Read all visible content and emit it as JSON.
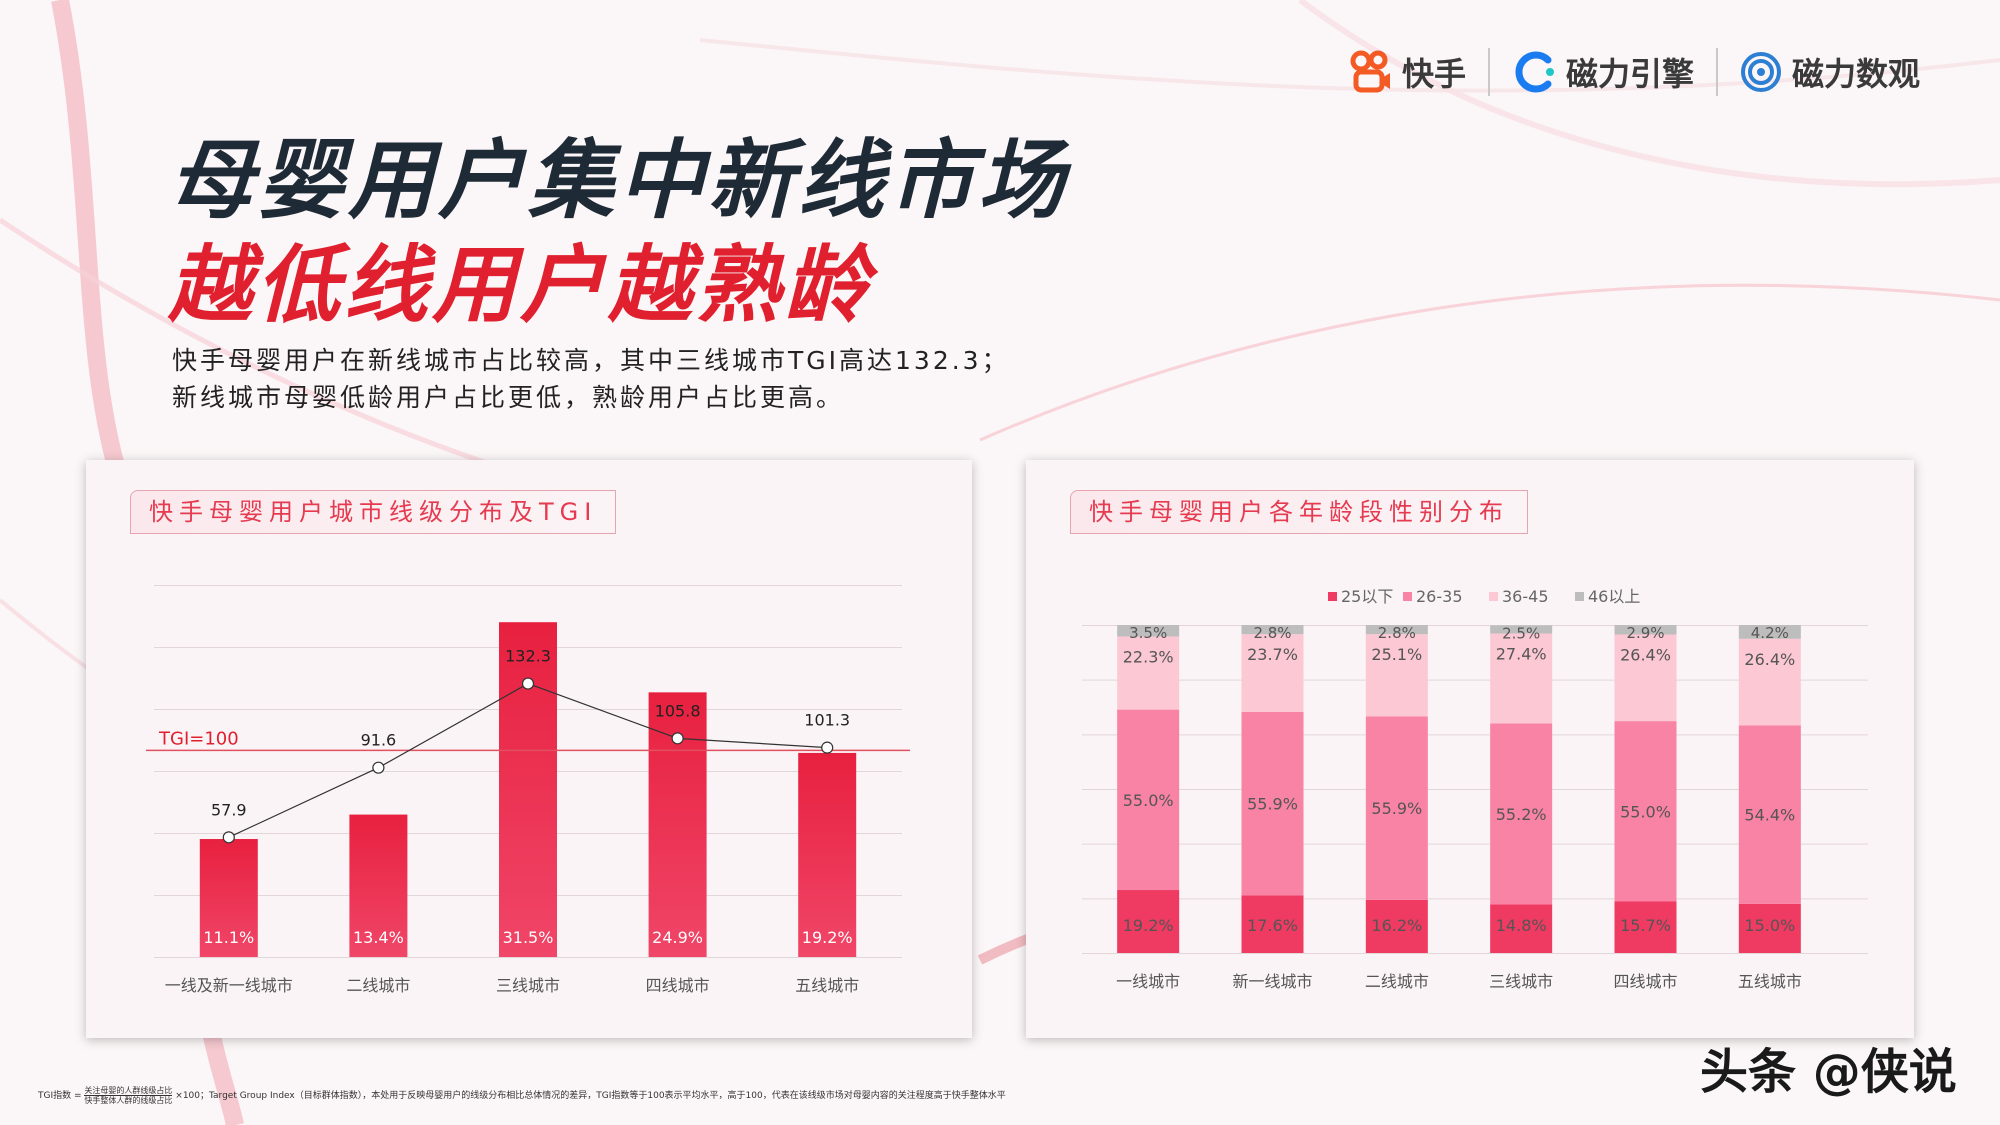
{
  "logos": [
    {
      "name": "kuaishou",
      "label": "快手",
      "color": "#f35a24"
    },
    {
      "name": "cili-yinqing",
      "label": "磁力引擎",
      "color": "#1b7cf2"
    },
    {
      "name": "cili-shuguan",
      "label": "磁力数观",
      "color": "#2d7fd4"
    }
  ],
  "title_line1": "母婴用户集中新线市场",
  "title_line2": "越低线用户越熟龄",
  "description_line1": "快手母婴用户在新线城市占比较高，其中三线城市TGI高达132.3；",
  "description_line2": "新线城市母婴低龄用户占比更低，熟龄用户占比更高。",
  "panel1_title": "快手母婴用户城市线级分布及TGI",
  "panel2_title": "快手母婴用户各年龄段性别分布",
  "footnote": {
    "prefix": "TGI指数 =",
    "numerator": "关注母婴的人群线级占比",
    "denominator": "快手整体人群的线级占比",
    "suffix": "×100；Target Group Index（目标群体指数），本处用于反映母婴用户的线级分布相比总体情况的差异，TGI指数等于100表示平均水平，高于100，代表在该线级市场对母婴内容的关注程度高于快手整体水平"
  },
  "watermark": "头条 @侠说",
  "colors": {
    "title_red": "#e0202e",
    "bar_red": "#e8203f",
    "accent": "#e63a50"
  },
  "chart_data": [
    {
      "type": "bar",
      "categories": [
        "一线及新一线城市",
        "二线城市",
        "三线城市",
        "四线城市",
        "五线城市"
      ],
      "series": [
        {
          "values": [
            11.1,
            13.4,
            31.5,
            24.9,
            19.2
          ],
          "value_labels": [
            "11.1%",
            "13.4%",
            "31.5%",
            "24.9%",
            "19.2%"
          ]
        },
        {
          "type": "line",
          "values": [
            57.9,
            91.6,
            132.3,
            105.8,
            101.3
          ],
          "value_labels": [
            "57.9",
            "91.6",
            "132.3",
            "105.8",
            "101.3"
          ]
        }
      ],
      "reference_line": {
        "value": 100,
        "label": "TGI=100"
      },
      "grid": true
    },
    {
      "type": "bar",
      "stacked": true,
      "categories": [
        "一线城市",
        "新一线城市",
        "二线城市",
        "三线城市",
        "四线城市",
        "五线城市"
      ],
      "series": [
        {
          "name": "25以下",
          "color": "#ef3a62",
          "values": [
            19.2,
            17.6,
            16.2,
            14.8,
            15.7,
            15.0
          ],
          "value_labels": [
            "19.2%",
            "17.6%",
            "16.2%",
            "14.8%",
            "15.7%",
            "15.0%"
          ]
        },
        {
          "name": "26-35",
          "color": "#f883a4",
          "values": [
            55.0,
            55.9,
            55.9,
            55.2,
            55.0,
            54.4
          ],
          "value_labels": [
            "55.0%",
            "55.9%",
            "55.9%",
            "55.2%",
            "55.0%",
            "54.4%"
          ]
        },
        {
          "name": "36-45",
          "color": "#fbc8d4",
          "values": [
            22.3,
            23.7,
            25.1,
            27.4,
            26.4,
            26.4
          ],
          "value_labels": [
            "22.3%",
            "23.7%",
            "25.1%",
            "27.4%",
            "26.4%",
            "26.4%"
          ]
        },
        {
          "name": "46以上",
          "color": "#bdbdbd",
          "values": [
            3.5,
            2.8,
            2.8,
            2.5,
            2.9,
            4.2
          ],
          "value_labels": [
            "3.5%",
            "2.8%",
            "2.8%",
            "2.5%",
            "2.9%",
            "4.2%"
          ]
        }
      ],
      "legend": "top",
      "grid": true
    }
  ]
}
